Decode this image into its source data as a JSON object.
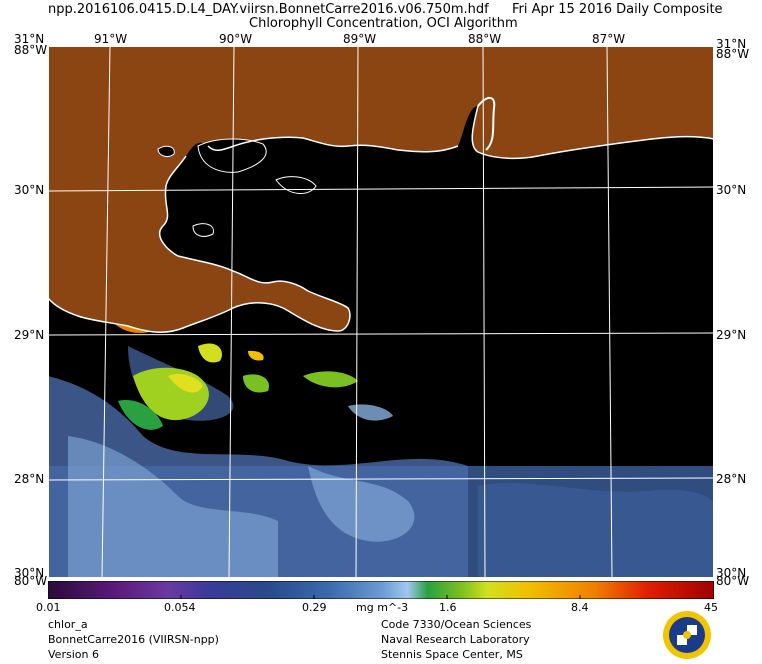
{
  "header": {
    "filename": "npp.2016106.0415.D.L4_DAY.viirsn.BonnetCarre2016.v06.750m.hdf",
    "date_label": "Fri Apr 15 2016 Daily Composite",
    "product_title": "Chlorophyll Concentration, OCI Algorithm"
  },
  "map": {
    "land_color": "#8b4513",
    "ocean_nodata_color": "#000000",
    "coastline_color": "#ffffff",
    "gridline_color": "#ffffff",
    "lon_labels": [
      "91°W",
      "90°W",
      "89°W",
      "88°W",
      "87°W"
    ],
    "lat_labels_left": [
      "31°N",
      "30°N",
      "29°N",
      "28°N",
      "30°N"
    ],
    "lat_labels_right": [
      "31°N",
      "30°N",
      "29°N",
      "28°N",
      "30°N"
    ],
    "corner_labels": [
      "88°W",
      "80°W"
    ]
  },
  "colorbar": {
    "ticks": [
      "0.01",
      "0.054",
      "0.29",
      "1.6",
      "8.4",
      "45"
    ],
    "units": "mg m^-3",
    "scale": "log",
    "range": [
      0.01,
      45
    ],
    "colors": [
      "#2a0a3a",
      "#5a1a7a",
      "#6a3aa0",
      "#3a3a9a",
      "#2a4a8a",
      "#3a6aaa",
      "#6a9ad0",
      "#a0c8f0",
      "#2aa040",
      "#7ac020",
      "#d0e020",
      "#f0c000",
      "#f08000",
      "#e02000",
      "#a00000"
    ]
  },
  "footer": {
    "left": [
      "chlor_a",
      "BonnetCarre2016 (VIIRSN-npp)",
      "Version 6"
    ],
    "right": [
      "Code 7330/Ocean Sciences",
      "Naval Research Laboratory",
      "Stennis Space Center, MS"
    ]
  }
}
